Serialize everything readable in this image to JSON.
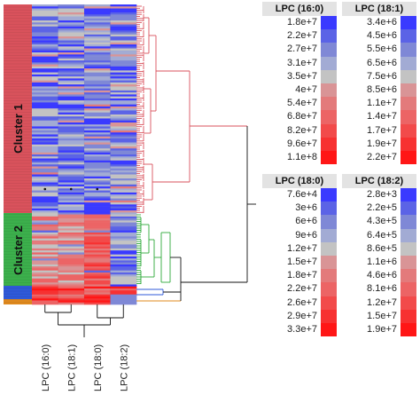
{
  "chart_data": {
    "type": "heatmap",
    "columns": [
      "LPC (16:0)",
      "LPC (18:1)",
      "LPC (18:0)",
      "LPC (18:2)"
    ],
    "clusters": [
      {
        "label": "Cluster 1",
        "color": "#d9525c"
      },
      {
        "label": "Cluster 2",
        "color": "#3cb04c"
      }
    ],
    "colormap": [
      "#3a3aff",
      "#5b63e6",
      "#7f88d6",
      "#a2abd4",
      "#c3c3c3",
      "#d99496",
      "#e37a7b",
      "#ec6465",
      "#f24a4a",
      "#f73131",
      "#ff1616"
    ],
    "tree_colors": {
      "cluster1": "#d9525c",
      "cluster2": "#2eaa3a",
      "cluster3": "#2f59d8",
      "cluster4": "#e08a1e",
      "trunk": "#111111"
    },
    "legends": [
      {
        "title": "LPC (16:0)",
        "values": [
          "1.8e+7",
          "2.2e+7",
          "2.7e+7",
          "3.1e+7",
          "3.5e+7",
          "4e+7",
          "5.4e+7",
          "6.8e+7",
          "8.2e+7",
          "9.6e+7",
          "1.1e+8"
        ]
      },
      {
        "title": "LPC (18:1)",
        "values": [
          "3.4e+6",
          "4.5e+6",
          "5.5e+6",
          "6.5e+6",
          "7.5e+6",
          "8.5e+6",
          "1.1e+7",
          "1.4e+7",
          "1.7e+7",
          "1.9e+7",
          "2.2e+7"
        ]
      },
      {
        "title": "LPC (18:0)",
        "values": [
          "7.6e+4",
          "3e+6",
          "6e+6",
          "9e+6",
          "1.2e+7",
          "1.5e+7",
          "1.8e+7",
          "2.2e+7",
          "2.6e+7",
          "2.9e+7",
          "3.3e+7"
        ]
      },
      {
        "title": "LPC (18:2)",
        "values": [
          "2.8e+3",
          "2.2e+5",
          "4.3e+5",
          "6.4e+5",
          "8.6e+5",
          "1.1e+6",
          "4.6e+6",
          "8.1e+6",
          "1.2e+7",
          "1.5e+7",
          "1.9e+7"
        ]
      }
    ]
  }
}
